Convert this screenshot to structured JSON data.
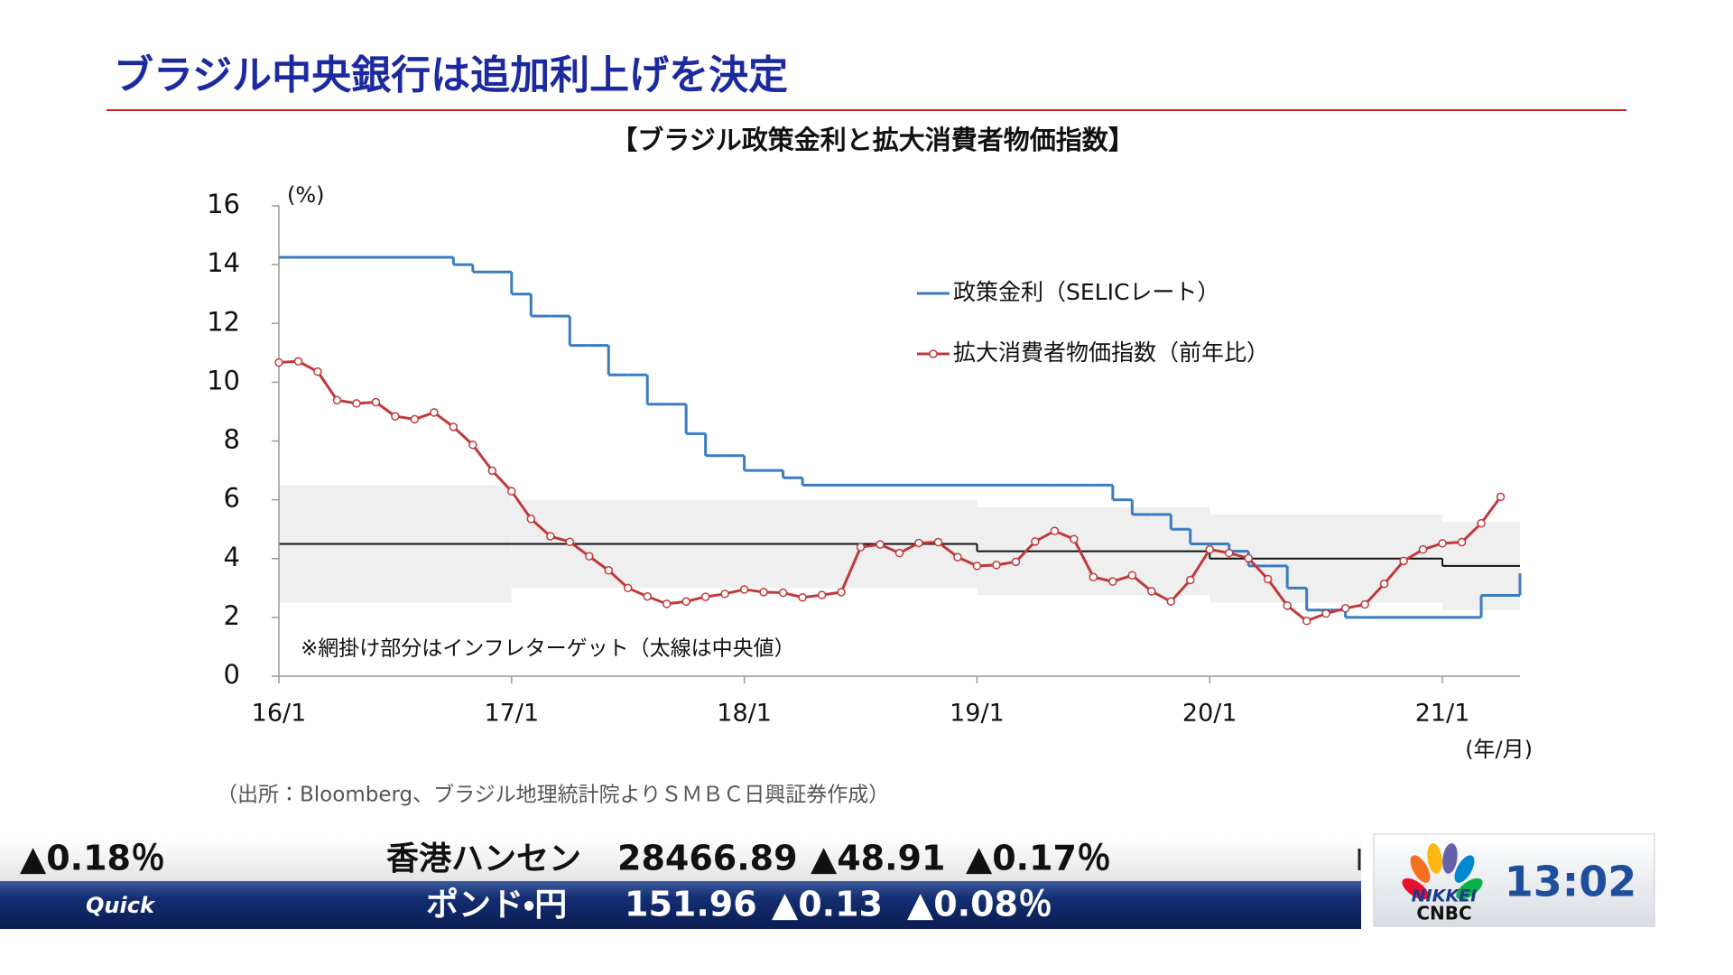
{
  "header": {
    "title": "ブラジル中央銀行は追加利上げを決定"
  },
  "chart_data": {
    "type": "line",
    "title": "【ブラジル政策金利と拡大消費者物価指数】",
    "y_unit": "(%)",
    "x_unit": "(年/月)",
    "note": "※網掛け部分はインフレターゲット（太線は中央値）",
    "source": "（出所：Bloomberg、ブラジル地理統計院よりＳＭＢＣ日興証券作成）",
    "xlim": [
      "2016-01",
      "2021-05"
    ],
    "xticks": [
      {
        "value": "2016-01",
        "label": "16/1"
      },
      {
        "value": "2017-01",
        "label": "17/1"
      },
      {
        "value": "2018-01",
        "label": "18/1"
      },
      {
        "value": "2019-01",
        "label": "19/1"
      },
      {
        "value": "2020-01",
        "label": "20/1"
      },
      {
        "value": "2021-01",
        "label": "21/1"
      }
    ],
    "ylim": [
      0,
      16
    ],
    "yticks": [
      0,
      2,
      4,
      6,
      8,
      10,
      12,
      14,
      16
    ],
    "legend": "upper-right",
    "series": [
      {
        "name": "政策金利（SELICレート）",
        "color": "#3a7cc0",
        "step": "after",
        "x": [
          "2016-01",
          "2016-02",
          "2016-03",
          "2016-04",
          "2016-05",
          "2016-06",
          "2016-07",
          "2016-08",
          "2016-09",
          "2016-10",
          "2016-11",
          "2016-12",
          "2017-01",
          "2017-02",
          "2017-03",
          "2017-04",
          "2017-05",
          "2017-06",
          "2017-07",
          "2017-08",
          "2017-09",
          "2017-10",
          "2017-11",
          "2017-12",
          "2018-01",
          "2018-02",
          "2018-03",
          "2018-04",
          "2018-05",
          "2018-06",
          "2018-07",
          "2018-08",
          "2018-09",
          "2018-10",
          "2018-11",
          "2018-12",
          "2019-01",
          "2019-02",
          "2019-03",
          "2019-04",
          "2019-05",
          "2019-06",
          "2019-07",
          "2019-08",
          "2019-09",
          "2019-10",
          "2019-11",
          "2019-12",
          "2020-01",
          "2020-02",
          "2020-03",
          "2020-04",
          "2020-05",
          "2020-06",
          "2020-07",
          "2020-08",
          "2020-09",
          "2020-10",
          "2020-11",
          "2020-12",
          "2021-01",
          "2021-02",
          "2021-03",
          "2021-04",
          "2021-05"
        ],
        "values": [
          14.25,
          14.25,
          14.25,
          14.25,
          14.25,
          14.25,
          14.25,
          14.25,
          14.25,
          14.0,
          13.75,
          13.75,
          13.0,
          12.25,
          12.25,
          11.25,
          11.25,
          10.25,
          10.25,
          9.25,
          9.25,
          8.25,
          7.5,
          7.5,
          7.0,
          7.0,
          6.75,
          6.5,
          6.5,
          6.5,
          6.5,
          6.5,
          6.5,
          6.5,
          6.5,
          6.5,
          6.5,
          6.5,
          6.5,
          6.5,
          6.5,
          6.5,
          6.5,
          6.0,
          5.5,
          5.5,
          5.0,
          4.5,
          4.5,
          4.25,
          3.75,
          3.75,
          3.0,
          2.25,
          2.25,
          2.0,
          2.0,
          2.0,
          2.0,
          2.0,
          2.0,
          2.0,
          2.75,
          2.75,
          3.5
        ]
      },
      {
        "name": "拡大消費者物価指数（前年比）",
        "color": "#c0393b",
        "markers": true,
        "x": [
          "2016-01",
          "2016-02",
          "2016-03",
          "2016-04",
          "2016-05",
          "2016-06",
          "2016-07",
          "2016-08",
          "2016-09",
          "2016-10",
          "2016-11",
          "2016-12",
          "2017-01",
          "2017-02",
          "2017-03",
          "2017-04",
          "2017-05",
          "2017-06",
          "2017-07",
          "2017-08",
          "2017-09",
          "2017-10",
          "2017-11",
          "2017-12",
          "2018-01",
          "2018-02",
          "2018-03",
          "2018-04",
          "2018-05",
          "2018-06",
          "2018-07",
          "2018-08",
          "2018-09",
          "2018-10",
          "2018-11",
          "2018-12",
          "2019-01",
          "2019-02",
          "2019-03",
          "2019-04",
          "2019-05",
          "2019-06",
          "2019-07",
          "2019-08",
          "2019-09",
          "2019-10",
          "2019-11",
          "2019-12",
          "2020-01",
          "2020-02",
          "2020-03",
          "2020-04",
          "2020-05",
          "2020-06",
          "2020-07",
          "2020-08",
          "2020-09",
          "2020-10",
          "2020-11",
          "2020-12",
          "2021-01",
          "2021-02",
          "2021-03",
          "2021-04"
        ],
        "values": [
          10.67,
          10.71,
          10.36,
          9.39,
          9.28,
          9.32,
          8.84,
          8.74,
          8.97,
          8.48,
          7.87,
          6.99,
          6.29,
          5.35,
          4.76,
          4.57,
          4.08,
          3.6,
          3.0,
          2.71,
          2.46,
          2.54,
          2.7,
          2.8,
          2.95,
          2.86,
          2.84,
          2.68,
          2.76,
          2.86,
          4.39,
          4.48,
          4.19,
          4.53,
          4.56,
          4.05,
          3.75,
          3.78,
          3.89,
          4.58,
          4.94,
          4.66,
          3.37,
          3.22,
          3.43,
          2.89,
          2.54,
          3.27,
          4.31,
          4.19,
          4.01,
          3.3,
          2.4,
          1.88,
          2.13,
          2.31,
          2.44,
          3.14,
          3.92,
          4.31,
          4.52,
          4.56,
          5.2,
          6.1
        ]
      }
    ],
    "target_band": {
      "color": "#efefef",
      "center_color": "#111111",
      "x": [
        "2016-01",
        "2017-01",
        "2018-01",
        "2019-01",
        "2020-01",
        "2021-01"
      ],
      "center": [
        4.5,
        4.5,
        4.5,
        4.25,
        4.0,
        3.75
      ],
      "lower": [
        2.5,
        3.0,
        3.0,
        2.75,
        2.5,
        2.25
      ],
      "upper": [
        6.5,
        6.0,
        6.0,
        5.75,
        5.5,
        5.25
      ]
    }
  },
  "ticker": {
    "top": [
      "▲0.18％",
      "香港ハンセン",
      "28466.89",
      "▲48.91",
      "▲0.17％"
    ],
    "bottom": [
      "Quick",
      "ポンド・円",
      "151.96",
      "▲0.13",
      "▲0.08％"
    ]
  },
  "logo": {
    "top": "NIKKEI",
    "bottom": "CNBC"
  },
  "clock": "13:02"
}
